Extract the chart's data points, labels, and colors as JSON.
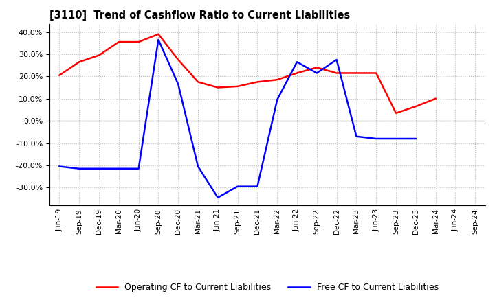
{
  "title": "[3110]  Trend of Cashflow Ratio to Current Liabilities",
  "x_labels": [
    "Jun-19",
    "Sep-19",
    "Dec-19",
    "Mar-20",
    "Jun-20",
    "Sep-20",
    "Dec-20",
    "Mar-21",
    "Jun-21",
    "Sep-21",
    "Dec-21",
    "Mar-22",
    "Jun-22",
    "Sep-22",
    "Dec-22",
    "Mar-23",
    "Jun-23",
    "Sep-23",
    "Dec-23",
    "Mar-24",
    "Jun-24",
    "Sep-24"
  ],
  "operating_cf": [
    0.205,
    0.265,
    0.295,
    0.355,
    0.355,
    0.39,
    0.275,
    0.175,
    0.15,
    0.155,
    0.175,
    0.185,
    0.215,
    0.24,
    0.215,
    0.215,
    0.215,
    0.035,
    0.065,
    0.1,
    null,
    null
  ],
  "free_cf": [
    -0.205,
    -0.215,
    -0.215,
    -0.215,
    -0.215,
    0.365,
    0.165,
    -0.205,
    -0.345,
    -0.295,
    -0.295,
    0.095,
    0.265,
    0.215,
    0.275,
    -0.07,
    -0.08,
    -0.08,
    -0.08,
    null,
    null,
    null
  ],
  "ylim": [
    -0.38,
    0.435
  ],
  "yticks": [
    -0.3,
    -0.2,
    -0.1,
    0.0,
    0.1,
    0.2,
    0.3,
    0.4
  ],
  "operating_color": "#ff0000",
  "free_color": "#0000ff",
  "grid_color": "#bbbbbb",
  "bg_color": "#ffffff",
  "legend_op": "Operating CF to Current Liabilities",
  "legend_free": "Free CF to Current Liabilities"
}
